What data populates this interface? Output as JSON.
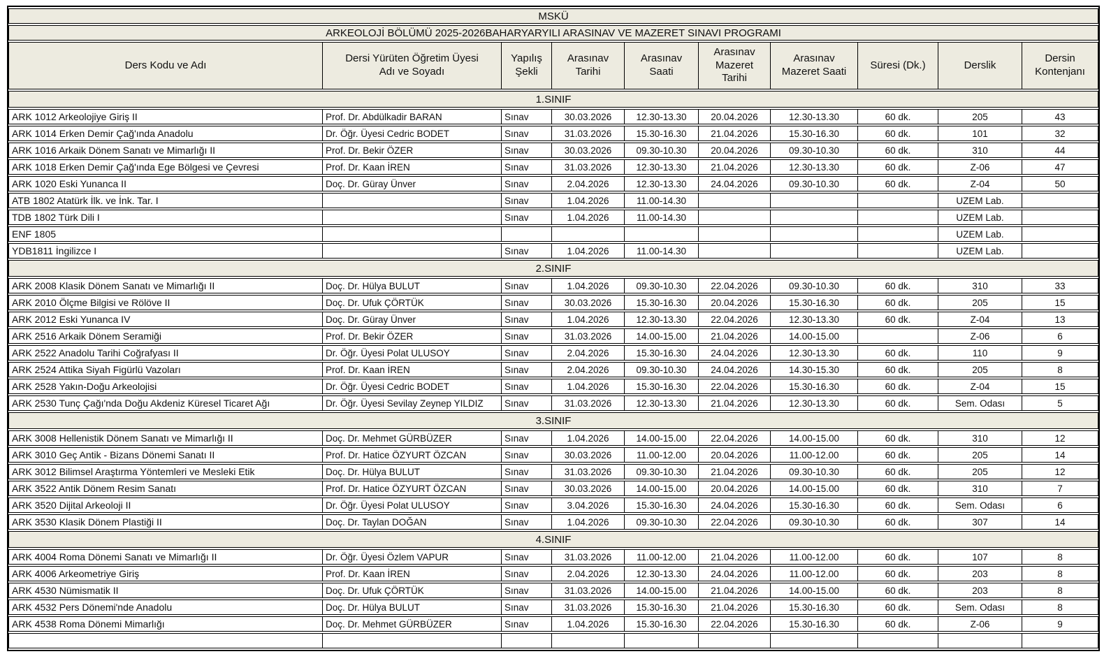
{
  "header": {
    "university": "MSKÜ",
    "title": "ARKEOLOJİ BÖLÜMÜ 2025-2026BAHARYARYILI ARASINAV VE MAZERET SINAVI PROGRAMI"
  },
  "columns": [
    "Ders Kodu ve Adı",
    "Dersi Yürüten Öğretim Üyesi\nAdı ve Soyadı",
    "Yapılış\nŞekli",
    "Arasınav\nTarihi",
    "Arasınav\nSaati",
    "Arasınav\nMazeret\nTarihi",
    "Arasınav\nMazeret Saati",
    "Süresi (Dk.)",
    "Derslik",
    "Dersin\nKontenjanı"
  ],
  "sections": [
    {
      "label": "1.SINIF",
      "rows": [
        [
          "ARK 1012 Arkeolojiye Giriş II",
          "Prof. Dr. Abdülkadir BARAN",
          "Sınav",
          "30.03.2026",
          "12.30-13.30",
          "20.04.2026",
          "12.30-13.30",
          "60 dk.",
          "205",
          "43"
        ],
        [
          "ARK 1014 Erken Demir Çağ'ında Anadolu",
          "Dr. Öğr. Üyesi Cedric BODET",
          "Sınav",
          "31.03.2026",
          "15.30-16.30",
          "21.04.2026",
          "15.30-16.30",
          "60 dk.",
          "101",
          "32"
        ],
        [
          "ARK 1016 Arkaik Dönem Sanatı ve Mimarlığı II",
          "Prof. Dr. Bekir ÖZER",
          "Sınav",
          "30.03.2026",
          "09.30-10.30",
          "20.04.2026",
          "09.30-10.30",
          "60 dk.",
          "310",
          "44"
        ],
        [
          "ARK 1018 Erken Demir Çağ'ında Ege Bölgesi ve Çevresi",
          "Prof. Dr. Kaan İREN",
          "Sınav",
          "31.03.2026",
          "12.30-13.30",
          "21.04.2026",
          "12.30-13.30",
          "60 dk.",
          "Z-06",
          "47"
        ],
        [
          "ARK 1020 Eski Yunanca II",
          "Doç. Dr. Güray Ünver",
          "Sınav",
          "2.04.2026",
          "12.30-13.30",
          "24.04.2026",
          "09.30-10.30",
          "60 dk.",
          "Z-04",
          "50"
        ],
        [
          "ATB 1802 Atatürk İlk. ve İnk. Tar. I",
          "",
          "Sınav",
          "1.04.2026",
          "11.00-14.30",
          "",
          "",
          "",
          "UZEM Lab.",
          ""
        ],
        [
          "TDB 1802 Türk Dili I",
          "",
          "Sınav",
          "1.04.2026",
          "11.00-14.30",
          "",
          "",
          "",
          "UZEM Lab.",
          ""
        ],
        [
          "ENF 1805",
          "",
          "",
          "",
          "",
          "",
          "",
          "",
          "UZEM Lab.",
          ""
        ],
        [
          "YDB1811 İngilizce I",
          "",
          "Sınav",
          "1.04.2026",
          "11.00-14.30",
          "",
          "",
          "",
          "UZEM Lab.",
          ""
        ]
      ]
    },
    {
      "label": "2.SINIF",
      "rows": [
        [
          "ARK 2008 Klasik Dönem Sanatı ve Mimarlığı II",
          "Doç. Dr. Hülya BULUT",
          "Sınav",
          "1.04.2026",
          "09.30-10.30",
          "22.04.2026",
          "09.30-10.30",
          "60 dk.",
          "310",
          "33"
        ],
        [
          "ARK 2010 Ölçme Bilgisi ve Rölöve II",
          "Doç. Dr. Ufuk ÇÖRTÜK",
          "Sınav",
          "30.03.2026",
          "15.30-16.30",
          "20.04.2026",
          "15.30-16.30",
          "60 dk.",
          "205",
          "15"
        ],
        [
          "ARK 2012 Eski Yunanca IV",
          "Doç. Dr. Güray Ünver",
          "Sınav",
          "1.04.2026",
          "12.30-13.30",
          "22.04.2026",
          "12.30-13.30",
          "60 dk.",
          "Z-04",
          "13"
        ],
        [
          "ARK 2516 Arkaik Dönem Seramiği",
          "Prof. Dr. Bekir ÖZER",
          "Sınav",
          "31.03.2026",
          "14.00-15.00",
          "21.04.2026",
          "14.00-15.00",
          "",
          "Z-06",
          "6"
        ],
        [
          "ARK 2522 Anadolu Tarihi Coğrafyası II",
          "Dr. Öğr. Üyesi Polat ULUSOY",
          "Sınav",
          "2.04.2026",
          "15.30-16.30",
          "24.04.2026",
          "12.30-13.30",
          "60 dk.",
          "110",
          "9"
        ],
        [
          "ARK 2524 Attika Siyah Figürlü Vazoları",
          "Prof. Dr. Kaan İREN",
          "Sınav",
          "2.04.2026",
          "09.30-10.30",
          "24.04.2026",
          "14.30-15.30",
          "60 dk.",
          "205",
          "8"
        ],
        [
          "ARK 2528 Yakın-Doğu Arkeolojisi",
          "Dr. Öğr. Üyesi Cedric BODET",
          "Sınav",
          "1.04.2026",
          "15.30-16.30",
          "22.04.2026",
          "15.30-16.30",
          "60 dk.",
          "Z-04",
          "15"
        ],
        [
          "ARK 2530 Tunç Çağı'nda Doğu Akdeniz Küresel Ticaret Ağı",
          "Dr. Öğr. Üyesi Sevilay Zeynep YILDIZ",
          "Sınav",
          "31.03.2026",
          "12.30-13.30",
          "21.04.2026",
          "12.30-13.30",
          "60 dk.",
          "Sem. Odası",
          "5"
        ]
      ]
    },
    {
      "label": "3.SINIF",
      "rows": [
        [
          "ARK 3008 Hellenistik Dönem Sanatı ve Mimarlığı II",
          "Doç. Dr. Mehmet GÜRBÜZER",
          "Sınav",
          "1.04.2026",
          "14.00-15.00",
          "22.04.2026",
          "14.00-15.00",
          "60 dk.",
          "310",
          "12"
        ],
        [
          "ARK 3010 Geç Antik - Bizans Dönemi Sanatı II",
          "Prof. Dr. Hatice ÖZYURT ÖZCAN",
          "Sınav",
          "30.03.2026",
          "11.00-12.00",
          "20.04.2026",
          "11.00-12.00",
          "60 dk.",
          "205",
          "14"
        ],
        [
          "ARK 3012 Bilimsel Araştırma Yöntemleri ve Mesleki Etik",
          "Doç. Dr. Hülya BULUT",
          "Sınav",
          "31.03.2026",
          "09.30-10.30",
          "21.04.2026",
          "09.30-10.30",
          "60 dk.",
          "205",
          "12"
        ],
        [
          "ARK 3522 Antik Dönem Resim Sanatı",
          "Prof. Dr. Hatice ÖZYURT ÖZCAN",
          "Sınav",
          "30.03.2026",
          "14.00-15.00",
          "20.04.2026",
          "14.00-15.00",
          "60 dk.",
          "310",
          "7"
        ],
        [
          "ARK 3520 Dijital Arkeoloji II",
          "Dr. Öğr. Üyesi Polat ULUSOY",
          "Sınav",
          "3.04.2026",
          "15.30-16.30",
          "24.04.2026",
          "15.30-16.30",
          "60 dk.",
          "Sem. Odası",
          "6"
        ],
        [
          "ARK 3530 Klasik Dönem Plastiği II",
          "Doç. Dr. Taylan DOĞAN",
          "Sınav",
          "1.04.2026",
          "09.30-10.30",
          "22.04.2026",
          "09.30-10.30",
          "60 dk.",
          "307",
          "14"
        ]
      ]
    },
    {
      "label": "4.SINIF",
      "rows": [
        [
          "ARK 4004 Roma Dönemi Sanatı ve Mimarlığı II",
          "Dr. Öğr. Üyesi Özlem VAPUR",
          "Sınav",
          "31.03.2026",
          "11.00-12.00",
          "21.04.2026",
          "11.00-12.00",
          "60 dk.",
          "107",
          "8"
        ],
        [
          "ARK 4006 Arkeometriye Giriş",
          "Prof. Dr. Kaan İREN",
          "Sınav",
          "2.04.2026",
          "12.30-13.30",
          "24.04.2026",
          "11.00-12.00",
          "60 dk.",
          "203",
          "8"
        ],
        [
          "ARK 4530 Nümismatik II",
          "Doç. Dr. Ufuk ÇÖRTÜK",
          "Sınav",
          "31.03.2026",
          "14.00-15.00",
          "21.04.2026",
          "14.00-15.00",
          "60 dk.",
          "203",
          "8"
        ],
        [
          "ARK 4532 Pers Dönemi'nde Anadolu",
          "Doç. Dr. Hülya BULUT",
          "Sınav",
          "31.03.2026",
          "15.30-16.30",
          "21.04.2026",
          "15.30-16.30",
          "60 dk.",
          "Sem. Odası",
          "8"
        ],
        [
          "ARK 4538 Roma Dönemi Mimarlığı",
          "Doç. Dr. Mehmet GÜRBÜZER",
          "Sınav",
          "1.04.2026",
          "15.30-16.30",
          "22.04.2026",
          "15.30-16.30",
          "60 dk.",
          "Z-06",
          "9"
        ],
        [
          "",
          "",
          "",
          "",
          "",
          "",
          "",
          "",
          "",
          ""
        ]
      ]
    }
  ],
  "colors": {
    "band_background": "#edebe0",
    "cell_background": "#ffffff",
    "border": "#000000"
  }
}
